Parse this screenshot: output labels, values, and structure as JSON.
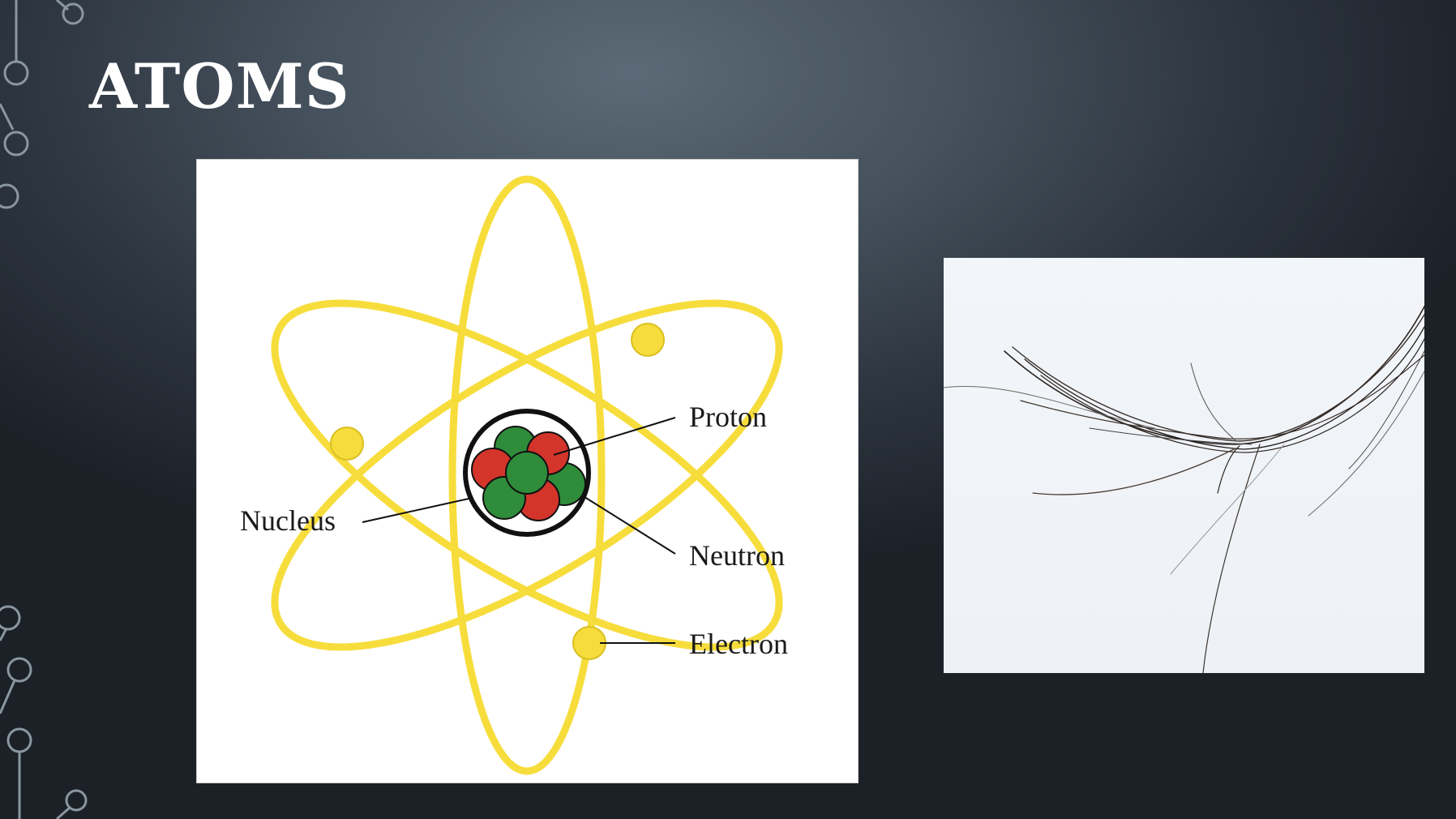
{
  "slide": {
    "title": "ATOMS"
  },
  "atom_diagram": {
    "labels": {
      "proton": "Proton",
      "nucleus": "Nucleus",
      "neutron": "Neutron",
      "electron": "Electron"
    },
    "colors": {
      "orbit": "#f7dd3c",
      "electron": "#f7dd3c",
      "proton": "#d3352b",
      "neutron": "#2f8c3a",
      "nucleus_ring": "#111111"
    }
  },
  "hair_photo": {
    "icon": "hair-strands-image"
  }
}
